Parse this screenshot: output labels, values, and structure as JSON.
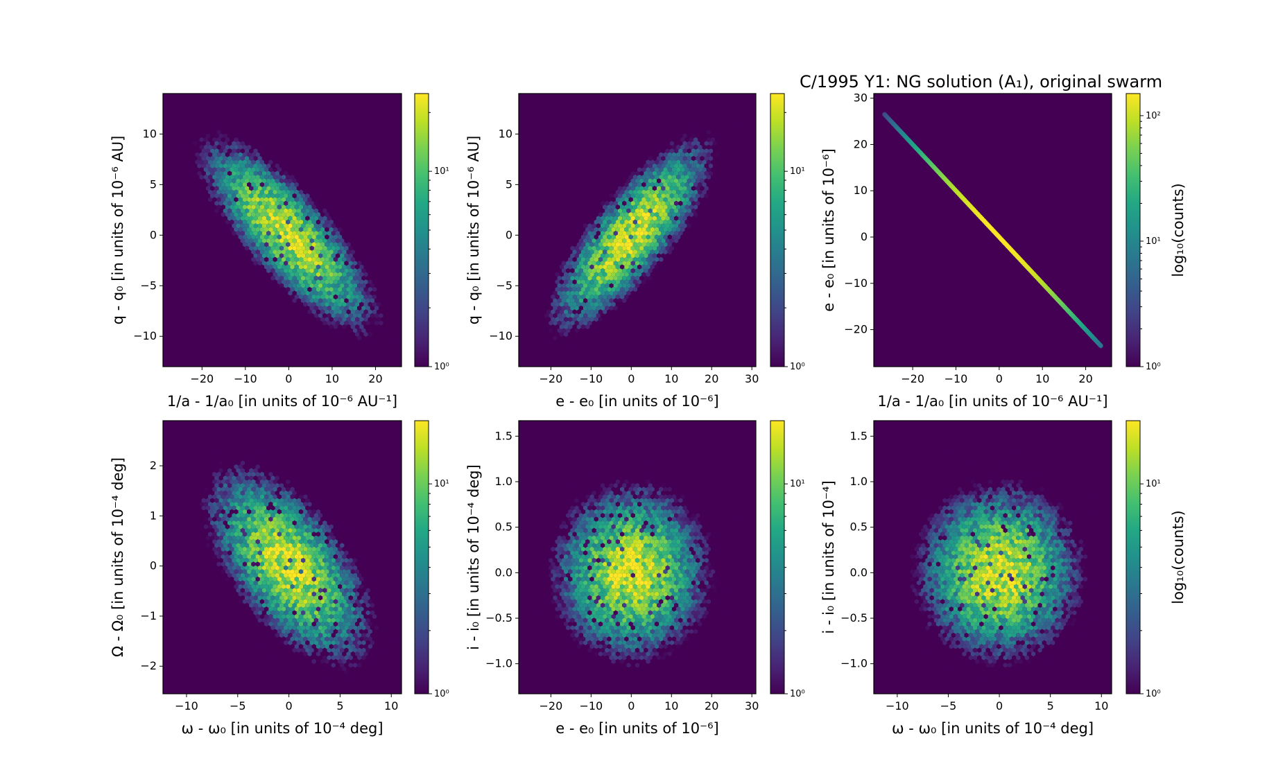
{
  "figure": {
    "title": "C/1995 Y1:  NG solution (A₁), original swarm"
  },
  "colormap": [
    "#440154",
    "#482475",
    "#414487",
    "#355f8d",
    "#2a788e",
    "#21918c",
    "#22a884",
    "#44bf70",
    "#7ad151",
    "#bddf26",
    "#fde725"
  ],
  "chart_data": [
    {
      "type": "heatmap",
      "subtype": "hexbin",
      "xlabel": "1/a - 1/a₀ [in units of 10⁻⁶ AU⁻¹]",
      "ylabel": "q - q₀ [in units of 10⁻⁶ AU]",
      "xlim": [
        -29,
        26
      ],
      "ylim": [
        -13,
        14
      ],
      "xticks": [
        "-20",
        "-10",
        "0",
        "10",
        "20"
      ],
      "xtick_values": [
        -20,
        -10,
        0,
        10,
        20
      ],
      "yticks": [
        "-10",
        "-5",
        "0",
        "5",
        "10"
      ],
      "ytick_values": [
        -10,
        -5,
        0,
        5,
        10
      ],
      "distribution": {
        "mean_x": 0,
        "mean_y": 0,
        "sd_x": 8.5,
        "sd_y": 4.0,
        "corr": -0.8
      },
      "colorbar": {
        "scale": "log",
        "min": 1,
        "max": 25,
        "ticks": [
          "10⁰",
          "10¹"
        ],
        "tick_values": [
          1,
          10
        ],
        "label": ""
      }
    },
    {
      "type": "heatmap",
      "subtype": "hexbin",
      "xlabel": "e - e₀ [in units of 10⁻⁶]",
      "ylabel": "q - q₀ [in units of 10⁻⁶ AU]",
      "xlim": [
        -28,
        31
      ],
      "ylim": [
        -13,
        14
      ],
      "xticks": [
        "-20",
        "-10",
        "0",
        "10",
        "20",
        "30"
      ],
      "xtick_values": [
        -20,
        -10,
        0,
        10,
        20,
        30
      ],
      "yticks": [
        "-10",
        "-5",
        "0",
        "5",
        "10"
      ],
      "ytick_values": [
        -10,
        -5,
        0,
        5,
        10
      ],
      "distribution": {
        "mean_x": 0,
        "mean_y": 0,
        "sd_x": 8.5,
        "sd_y": 4.0,
        "corr": 0.8
      },
      "colorbar": {
        "scale": "log",
        "min": 1,
        "max": 25,
        "ticks": [
          "10⁰",
          "10¹"
        ],
        "tick_values": [
          1,
          10
        ],
        "label": ""
      }
    },
    {
      "type": "heatmap",
      "subtype": "hexbin",
      "xlabel": "1/a - 1/a₀ [in units of 10⁻⁶ AU⁻¹]",
      "ylabel": "e - e₀ [in units of 10⁻⁶]",
      "xlim": [
        -29,
        26
      ],
      "ylim": [
        -28,
        31
      ],
      "xticks": [
        "-20",
        "-10",
        "0",
        "10",
        "20"
      ],
      "xtick_values": [
        -20,
        -10,
        0,
        10,
        20
      ],
      "yticks": [
        "-20",
        "-10",
        "0",
        "10",
        "20",
        "30"
      ],
      "ytick_values": [
        -20,
        -10,
        0,
        10,
        20,
        30
      ],
      "line": {
        "x_from": -26.5,
        "x_to": 23.5,
        "slope": -1
      },
      "colorbar": {
        "scale": "log",
        "min": 1,
        "max": 150,
        "ticks": [
          "10⁰",
          "10¹",
          "10²"
        ],
        "tick_values": [
          1,
          10,
          100
        ],
        "label": "log₁₀(counts)"
      }
    },
    {
      "type": "heatmap",
      "subtype": "hexbin",
      "xlabel": "ω - ω₀ [in units of 10⁻⁴ deg]",
      "ylabel": "Ω - Ω₀ [in units of 10⁻⁴ deg]",
      "xlim": [
        -12.3,
        11
      ],
      "ylim": [
        -2.55,
        2.9
      ],
      "xticks": [
        "-10",
        "-5",
        "0",
        "5",
        "10"
      ],
      "xtick_values": [
        -10,
        -5,
        0,
        5,
        10
      ],
      "yticks": [
        "-2",
        "-1",
        "0",
        "1",
        "2"
      ],
      "ytick_values": [
        -2,
        -1,
        0,
        1,
        2
      ],
      "distribution": {
        "mean_x": 0,
        "mean_y": 0,
        "sd_x": 3.5,
        "sd_y": 0.85,
        "corr": -0.6
      },
      "colorbar": {
        "scale": "log",
        "min": 1,
        "max": 20,
        "ticks": [
          "10⁰",
          "10¹"
        ],
        "tick_values": [
          1,
          10
        ],
        "label": ""
      }
    },
    {
      "type": "heatmap",
      "subtype": "hexbin",
      "xlabel": "e - e₀ [in units of 10⁻⁶]",
      "ylabel": "i - i₀ [in units of 10⁻⁴ deg]",
      "xlim": [
        -28,
        31
      ],
      "ylim": [
        -1.33,
        1.67
      ],
      "xticks": [
        "-20",
        "-10",
        "0",
        "10",
        "20",
        "30"
      ],
      "xtick_values": [
        -20,
        -10,
        0,
        10,
        20,
        30
      ],
      "yticks": [
        "-1.0",
        "-0.5",
        "0.0",
        "0.5",
        "1.0",
        "1.5"
      ],
      "ytick_values": [
        -1.0,
        -0.5,
        0.0,
        0.5,
        1.0,
        1.5
      ],
      "distribution": {
        "mean_x": 0,
        "mean_y": 0,
        "sd_x": 8.5,
        "sd_y": 0.42,
        "corr": 0.0
      },
      "colorbar": {
        "scale": "log",
        "min": 1,
        "max": 20,
        "ticks": [
          "10⁰",
          "10¹"
        ],
        "tick_values": [
          1,
          10
        ],
        "label": ""
      }
    },
    {
      "type": "heatmap",
      "subtype": "hexbin",
      "xlabel": "ω - ω₀ [in units of 10⁻⁴ deg]",
      "ylabel": "i - i₀ [in units of 10⁻⁴]",
      "xlim": [
        -12.3,
        11
      ],
      "ylim": [
        -1.33,
        1.67
      ],
      "xticks": [
        "-10",
        "-5",
        "0",
        "5",
        "10"
      ],
      "xtick_values": [
        -10,
        -5,
        0,
        5,
        10
      ],
      "yticks": [
        "-1.0",
        "-0.5",
        "0.0",
        "0.5",
        "1.0",
        "1.5"
      ],
      "ytick_values": [
        -1.0,
        -0.5,
        0.0,
        0.5,
        1.0,
        1.5
      ],
      "distribution": {
        "mean_x": 0,
        "mean_y": 0,
        "sd_x": 3.5,
        "sd_y": 0.42,
        "corr": 0.0
      },
      "colorbar": {
        "scale": "log",
        "min": 1,
        "max": 20,
        "ticks": [
          "10⁰",
          "10¹"
        ],
        "tick_values": [
          1,
          10
        ],
        "label": "log₁₀(counts)"
      }
    }
  ]
}
